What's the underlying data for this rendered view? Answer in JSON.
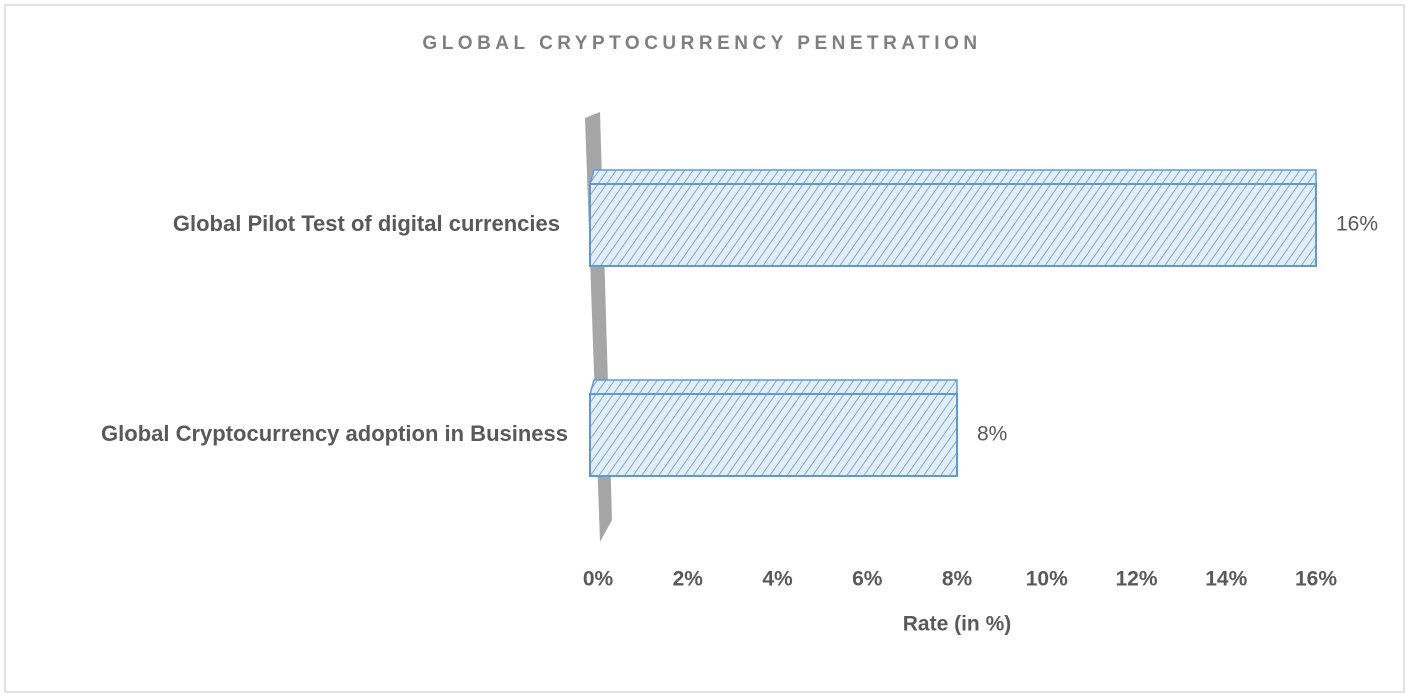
{
  "chart_data": {
    "type": "bar",
    "orientation": "horizontal",
    "title": "GLOBAL CRYPTOCURRENCY PENETRATION",
    "x_label": "Rate (in %)",
    "categories": [
      "Global Pilot Test of digital currencies",
      "Global Cryptocurrency adoption in Business"
    ],
    "values": [
      16,
      8
    ],
    "value_labels": [
      "16%",
      "8%"
    ],
    "color": "#5b9bd5",
    "xlim": [
      0,
      16
    ],
    "xticks": [
      {
        "value": 0,
        "label": "0%"
      },
      {
        "value": 2,
        "label": "2%"
      },
      {
        "value": 4,
        "label": "4%"
      },
      {
        "value": 6,
        "label": "6%"
      },
      {
        "value": 8,
        "label": "8%"
      },
      {
        "value": 10,
        "label": "10%"
      },
      {
        "value": 12,
        "label": "12%"
      },
      {
        "value": 14,
        "label": "14%"
      },
      {
        "value": 16,
        "label": "16%"
      }
    ],
    "grid": false
  }
}
